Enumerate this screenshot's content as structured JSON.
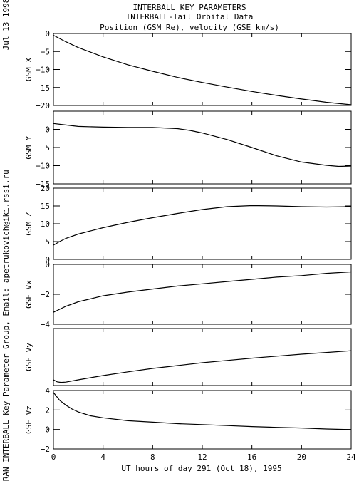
{
  "side_text": {
    "date": "Jul 13 1998",
    "credit": "IKI RAN INTERBALL Key Parameter Group, Email: apetrukovich@iki.rssi.ru"
  },
  "header": {
    "line1": "INTERBALL KEY PARAMETERS",
    "line2": "INTERBALL-Tail Orbital Data",
    "line3": "Position (GSM Re), velocity (GSE km/s)"
  },
  "chart_data": {
    "type": "line",
    "xlabel": "UT hours of day 291 (Oct 18), 1995",
    "xlim": [
      0,
      24
    ],
    "xticks": [
      0,
      4,
      8,
      12,
      16,
      20,
      24
    ],
    "grid": false,
    "panels": [
      {
        "ylabel": "GSM X",
        "ylim": [
          -20,
          0
        ],
        "yticks": [
          0,
          -5,
          -10,
          -15,
          -20
        ],
        "x": [
          0,
          1,
          2,
          4,
          6,
          8,
          10,
          12,
          14,
          16,
          18,
          20,
          22,
          24
        ],
        "y": [
          -0.5,
          -2.3,
          -3.9,
          -6.5,
          -8.7,
          -10.5,
          -12.2,
          -13.6,
          -14.9,
          -16.1,
          -17.2,
          -18.2,
          -19.1,
          -19.8
        ]
      },
      {
        "ylabel": "GSM Y",
        "ylim": [
          -15,
          5
        ],
        "yticks": [
          0,
          -5,
          -10,
          -15
        ],
        "x": [
          0,
          1,
          2,
          4,
          6,
          8,
          10,
          11,
          12,
          14,
          16,
          18,
          20,
          22,
          23,
          24
        ],
        "y": [
          1.6,
          1.2,
          0.8,
          0.6,
          0.5,
          0.5,
          0.2,
          -0.3,
          -1.0,
          -2.8,
          -5.0,
          -7.3,
          -9.0,
          -9.9,
          -10.2,
          -10.1
        ]
      },
      {
        "ylabel": "GSM Z",
        "ylim": [
          0,
          20
        ],
        "yticks": [
          0,
          5,
          10,
          15,
          20
        ],
        "x": [
          0,
          0.5,
          1,
          2,
          4,
          6,
          8,
          10,
          12,
          14,
          16,
          18,
          20,
          22,
          24
        ],
        "y": [
          4.0,
          5.0,
          5.9,
          7.1,
          8.9,
          10.4,
          11.7,
          12.9,
          14.0,
          14.8,
          15.1,
          15.0,
          14.8,
          14.7,
          14.8
        ]
      },
      {
        "ylabel": "GSE Vx",
        "ylim": [
          -4,
          0
        ],
        "yticks": [
          0,
          -2,
          -4
        ],
        "x": [
          0,
          0.5,
          1,
          2,
          4,
          6,
          8,
          10,
          12,
          14,
          16,
          18,
          20,
          22,
          24
        ],
        "y": [
          -3.2,
          -3.0,
          -2.8,
          -2.5,
          -2.1,
          -1.85,
          -1.65,
          -1.45,
          -1.3,
          -1.15,
          -1.0,
          -0.85,
          -0.75,
          -0.6,
          -0.5
        ]
      },
      {
        "ylabel": "GSE Vy",
        "ylim": [
          -1.4,
          0.6
        ],
        "yticks": [],
        "x": [
          0,
          0.3,
          0.6,
          1,
          2,
          4,
          6,
          8,
          10,
          12,
          14,
          16,
          18,
          20,
          22,
          24
        ],
        "y": [
          -1.2,
          -1.27,
          -1.29,
          -1.28,
          -1.2,
          -1.05,
          -0.92,
          -0.8,
          -0.7,
          -0.6,
          -0.52,
          -0.44,
          -0.37,
          -0.3,
          -0.24,
          -0.18
        ]
      },
      {
        "ylabel": "GSE Vz",
        "ylim": [
          -2,
          4
        ],
        "yticks": [
          4,
          2,
          0,
          -2
        ],
        "x": [
          0,
          0.25,
          0.5,
          1,
          1.5,
          2,
          3,
          4,
          6,
          8,
          10,
          12,
          14,
          16,
          18,
          20,
          22,
          24
        ],
        "y": [
          3.8,
          3.4,
          3.0,
          2.5,
          2.1,
          1.8,
          1.4,
          1.2,
          0.9,
          0.75,
          0.6,
          0.5,
          0.4,
          0.3,
          0.22,
          0.15,
          0.05,
          -0.02
        ]
      }
    ]
  }
}
